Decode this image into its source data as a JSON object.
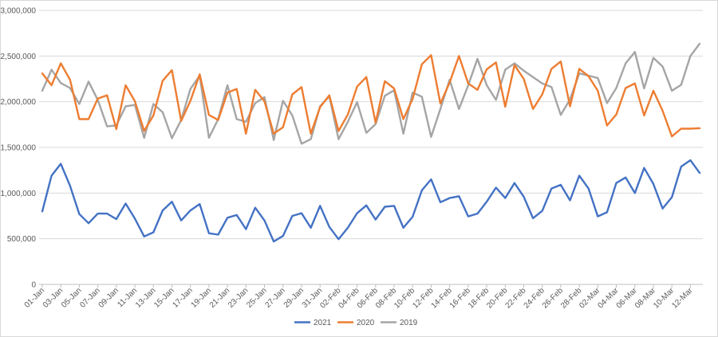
{
  "chart_data": {
    "type": "line",
    "title": "",
    "xlabel": "",
    "ylabel": "",
    "ylim": [
      0,
      3000000
    ],
    "yticks": [
      0,
      500000,
      1000000,
      1500000,
      2000000,
      2500000,
      3000000
    ],
    "ytick_labels": [
      "0",
      "500,000",
      "1,000,000",
      "1,500,000",
      "2,000,000",
      "2,500,000",
      "3,000,000"
    ],
    "grid": true,
    "legend_position": "bottom",
    "x": [
      "01-Jan",
      "02-Jan",
      "03-Jan",
      "04-Jan",
      "05-Jan",
      "06-Jan",
      "07-Jan",
      "08-Jan",
      "09-Jan",
      "10-Jan",
      "11-Jan",
      "12-Jan",
      "13-Jan",
      "14-Jan",
      "15-Jan",
      "16-Jan",
      "17-Jan",
      "18-Jan",
      "19-Jan",
      "20-Jan",
      "21-Jan",
      "22-Jan",
      "23-Jan",
      "24-Jan",
      "25-Jan",
      "26-Jan",
      "27-Jan",
      "28-Jan",
      "29-Jan",
      "30-Jan",
      "31-Jan",
      "01-Feb",
      "02-Feb",
      "03-Feb",
      "04-Feb",
      "05-Feb",
      "06-Feb",
      "07-Feb",
      "08-Feb",
      "09-Feb",
      "10-Feb",
      "11-Feb",
      "12-Feb",
      "13-Feb",
      "14-Feb",
      "15-Feb",
      "16-Feb",
      "17-Feb",
      "18-Feb",
      "19-Feb",
      "20-Feb",
      "21-Feb",
      "22-Feb",
      "23-Feb",
      "24-Feb",
      "25-Feb",
      "26-Feb",
      "27-Feb",
      "28-Feb",
      "01-Mar",
      "02-Mar",
      "03-Mar",
      "04-Mar",
      "05-Mar",
      "06-Mar",
      "07-Mar",
      "08-Mar",
      "09-Mar",
      "10-Mar",
      "11-Mar",
      "12-Mar",
      "13-Mar"
    ],
    "xtick_labels_shown": [
      "01-Jan",
      "03-Jan",
      "05-Jan",
      "07-Jan",
      "09-Jan",
      "11-Jan",
      "13-Jan",
      "15-Jan",
      "17-Jan",
      "19-Jan",
      "21-Jan",
      "23-Jan",
      "25-Jan",
      "27-Jan",
      "29-Jan",
      "31-Jan",
      "02-Feb",
      "04-Feb",
      "06-Feb",
      "08-Feb",
      "10-Feb",
      "12-Feb",
      "14-Feb",
      "16-Feb",
      "18-Feb",
      "20-Feb",
      "22-Feb",
      "24-Feb",
      "26-Feb",
      "28-Feb",
      "02-Mar",
      "04-Mar",
      "06-Mar",
      "08-Mar",
      "10-Mar",
      "12-Mar"
    ],
    "series": [
      {
        "name": "2021",
        "color": "#4472c4",
        "values": [
          800000,
          1190000,
          1320000,
          1080000,
          770000,
          670000,
          775000,
          775000,
          715000,
          885000,
          720000,
          525000,
          570000,
          810000,
          905000,
          700000,
          810000,
          880000,
          560000,
          545000,
          730000,
          760000,
          605000,
          840000,
          700000,
          470000,
          530000,
          750000,
          780000,
          620000,
          860000,
          630000,
          495000,
          620000,
          780000,
          865000,
          710000,
          850000,
          860000,
          620000,
          740000,
          1030000,
          1150000,
          900000,
          945000,
          965000,
          745000,
          775000,
          905000,
          1060000,
          945000,
          1110000,
          960000,
          725000,
          805000,
          1050000,
          1090000,
          920000,
          1190000,
          1050000,
          745000,
          790000,
          1110000,
          1170000,
          1000000,
          1275000,
          1100000,
          830000,
          955000,
          1290000,
          1360000,
          1220000
        ]
      },
      {
        "name": "2020",
        "color": "#ed7d31",
        "values": [
          2310000,
          2180000,
          2420000,
          2240000,
          1810000,
          1810000,
          2035000,
          2070000,
          1700000,
          2180000,
          2005000,
          1680000,
          1850000,
          2230000,
          2345000,
          1790000,
          2010000,
          2300000,
          1855000,
          1800000,
          2100000,
          2140000,
          1650000,
          2130000,
          2005000,
          1650000,
          1720000,
          2080000,
          2160000,
          1650000,
          1940000,
          2070000,
          1680000,
          1860000,
          2165000,
          2270000,
          1770000,
          2225000,
          2145000,
          1810000,
          2030000,
          2410000,
          2510000,
          1980000,
          2210000,
          2500000,
          2200000,
          2130000,
          2355000,
          2430000,
          1945000,
          2400000,
          2250000,
          1920000,
          2080000,
          2360000,
          2440000,
          1950000,
          2360000,
          2280000,
          2120000,
          1740000,
          1860000,
          2150000,
          2200000,
          1850000,
          2120000,
          1900000,
          1620000,
          1705000,
          1705000,
          1710000
        ]
      },
      {
        "name": "2019",
        "color": "#a5a5a5",
        "values": [
          2120000,
          2350000,
          2205000,
          2150000,
          1975000,
          2220000,
          2020000,
          1730000,
          1740000,
          1950000,
          1965000,
          1605000,
          1975000,
          1885000,
          1600000,
          1800000,
          2140000,
          2285000,
          1605000,
          1810000,
          2180000,
          1810000,
          1780000,
          1985000,
          2050000,
          1580000,
          2010000,
          1850000,
          1540000,
          1590000,
          1950000,
          2060000,
          1590000,
          1780000,
          1995000,
          1660000,
          1755000,
          2065000,
          2125000,
          1650000,
          2100000,
          2055000,
          1615000,
          1920000,
          2240000,
          1920000,
          2180000,
          2470000,
          2180000,
          2020000,
          2350000,
          2420000,
          2340000,
          2270000,
          2200000,
          2160000,
          1855000,
          2025000,
          2310000,
          2285000,
          2260000,
          1985000,
          2150000,
          2420000,
          2545000,
          2145000,
          2480000,
          2385000,
          2120000,
          2185000,
          2500000,
          2635000
        ]
      }
    ]
  }
}
